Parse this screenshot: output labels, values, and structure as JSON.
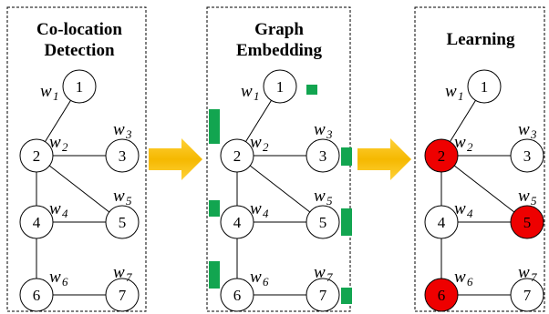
{
  "panels": [
    {
      "title_line1": "Co-location",
      "title_line2": "Detection"
    },
    {
      "title_line1": "Graph",
      "title_line2": "Embedding"
    },
    {
      "title_line1": "Learning",
      "title_line2": ""
    }
  ],
  "nodes": [
    {
      "id": "1",
      "weight": "w",
      "weight_sub": "1"
    },
    {
      "id": "2",
      "weight": "w",
      "weight_sub": "2"
    },
    {
      "id": "3",
      "weight": "w",
      "weight_sub": "3"
    },
    {
      "id": "4",
      "weight": "w",
      "weight_sub": "4"
    },
    {
      "id": "5",
      "weight": "w",
      "weight_sub": "5"
    },
    {
      "id": "6",
      "weight": "w",
      "weight_sub": "6"
    },
    {
      "id": "7",
      "weight": "w",
      "weight_sub": "7"
    }
  ],
  "edges": [
    [
      "1",
      "2"
    ],
    [
      "2",
      "3"
    ],
    [
      "2",
      "4"
    ],
    [
      "2",
      "5"
    ],
    [
      "4",
      "5"
    ],
    [
      "4",
      "6"
    ],
    [
      "6",
      "7"
    ]
  ],
  "highlighted_nodes": [
    "2",
    "5",
    "6"
  ],
  "colors": {
    "highlight_fill": "#ee0000",
    "node_fill": "#ffffff",
    "embedding_bar": "#12a550",
    "arrow": "#f5c000",
    "border": "#000000"
  }
}
